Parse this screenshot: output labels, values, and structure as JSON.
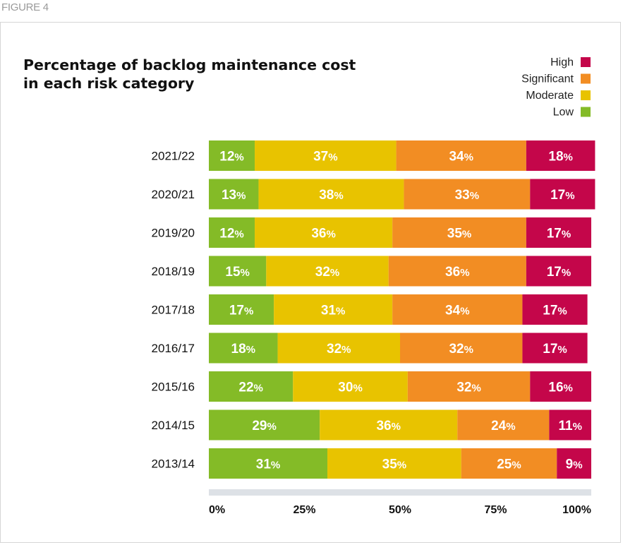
{
  "figure_label": "FIGURE 4",
  "chart_data": {
    "type": "bar",
    "orientation": "horizontal",
    "stacked": true,
    "title": "Percentage of backlog maintenance cost\nin each risk category",
    "categories": [
      "2021/22",
      "2020/21",
      "2019/20",
      "2018/19",
      "2017/18",
      "2016/17",
      "2015/16",
      "2014/15",
      "2013/14"
    ],
    "series": [
      {
        "name": "Low",
        "color": "#84bb27",
        "values": [
          12,
          13,
          12,
          15,
          17,
          18,
          22,
          29,
          31
        ]
      },
      {
        "name": "Moderate",
        "color": "#e8c300",
        "values": [
          37,
          38,
          36,
          32,
          31,
          32,
          30,
          36,
          35
        ]
      },
      {
        "name": "Significant",
        "color": "#f28d23",
        "values": [
          34,
          33,
          35,
          36,
          34,
          32,
          32,
          24,
          25
        ]
      },
      {
        "name": "High",
        "color": "#c4064a",
        "values": [
          18,
          17,
          17,
          17,
          17,
          17,
          16,
          11,
          9
        ]
      }
    ],
    "legend_order": [
      "High",
      "Significant",
      "Moderate",
      "Low"
    ],
    "legend_position": "top-right",
    "value_suffix": "%",
    "xlim": [
      0,
      100
    ],
    "xticks": [
      0,
      25,
      50,
      75,
      100
    ],
    "xtick_labels": [
      "0%",
      "25%",
      "50%",
      "75%",
      "100%"
    ],
    "grid": false
  }
}
